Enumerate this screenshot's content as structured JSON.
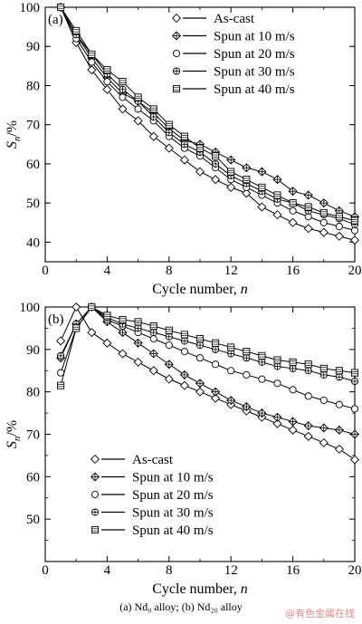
{
  "caption": "(a) Nd₀ alloy; (b) Nd₂₀ alloy",
  "watermark": "@有色金属在线",
  "chart_data": [
    {
      "type": "line",
      "panel_label": "(a)",
      "xlabel": "Cycle number, n",
      "ylabel": "Sn/%",
      "xlim": [
        0,
        20
      ],
      "ylim": [
        35,
        100
      ],
      "xticks": [
        0,
        4,
        8,
        12,
        16,
        20
      ],
      "yticks": [
        40,
        50,
        60,
        70,
        80,
        90,
        100
      ],
      "legend_position": "top-right",
      "x": [
        1,
        2,
        3,
        4,
        5,
        6,
        7,
        8,
        9,
        10,
        11,
        12,
        13,
        14,
        15,
        16,
        17,
        18,
        19,
        20
      ],
      "series": [
        {
          "name": "As-cast",
          "marker": "diamond",
          "values": [
            100,
            91,
            84,
            79,
            74,
            71,
            67,
            64,
            61,
            58,
            56,
            54,
            52.5,
            49,
            47,
            45,
            43.5,
            42.5,
            41.5,
            40.5
          ]
        },
        {
          "name": "Spun at 10 m/s",
          "marker": "plus",
          "values": [
            100,
            93,
            87,
            82,
            78,
            76,
            73,
            69,
            66,
            65,
            63,
            61,
            59,
            58,
            56,
            53,
            52,
            50,
            48,
            46.5
          ]
        },
        {
          "name": "Spun at 20 m/s",
          "marker": "circle",
          "values": [
            100,
            92,
            86,
            81,
            77,
            74,
            71,
            67,
            64,
            62,
            59,
            56,
            54,
            52,
            50,
            48,
            46.5,
            45,
            44,
            43
          ]
        },
        {
          "name": "Spun at 30 m/s",
          "marker": "crossed-circle",
          "values": [
            100,
            93,
            88,
            83,
            79,
            76,
            72,
            68,
            65,
            63,
            60,
            57,
            55,
            53,
            51,
            50,
            48,
            47,
            46,
            44.5
          ]
        },
        {
          "name": "Spun at 40 m/s",
          "marker": "square",
          "values": [
            100,
            94,
            88,
            84,
            81,
            77,
            74,
            70,
            67,
            64,
            62,
            58,
            56,
            54,
            52,
            50,
            49,
            47.5,
            46.5,
            45.5
          ]
        }
      ]
    },
    {
      "type": "line",
      "panel_label": "(b)",
      "xlabel": "Cycle number, n",
      "ylabel": "Sn/%",
      "xlim": [
        0,
        20
      ],
      "ylim": [
        40,
        100
      ],
      "xticks": [
        0,
        4,
        8,
        12,
        16,
        20
      ],
      "yticks": [
        50,
        60,
        70,
        80,
        90,
        100
      ],
      "legend_position": "bottom-left",
      "x": [
        1,
        2,
        3,
        4,
        5,
        6,
        7,
        8,
        9,
        10,
        11,
        12,
        13,
        14,
        15,
        16,
        17,
        18,
        19,
        20
      ],
      "series": [
        {
          "name": "As-cast",
          "marker": "diamond",
          "values": [
            92,
            100,
            94,
            91.5,
            89,
            87,
            85,
            83,
            81.5,
            80,
            78.5,
            77,
            75.5,
            74,
            72.5,
            71,
            69.5,
            68,
            66.5,
            64
          ]
        },
        {
          "name": "Spun at 10 m/s",
          "marker": "plus",
          "values": [
            88,
            96,
            100,
            96.5,
            94,
            91.5,
            89,
            86.5,
            84,
            82,
            80,
            78,
            76.5,
            75,
            74,
            73,
            72,
            71.5,
            71,
            70
          ]
        },
        {
          "name": "Spun at 20 m/s",
          "marker": "circle",
          "values": [
            84.5,
            95,
            100,
            97,
            95.5,
            94,
            92.5,
            91,
            89.5,
            88,
            86.5,
            85,
            84,
            83,
            82,
            80.5,
            79,
            78,
            77,
            76
          ]
        },
        {
          "name": "Spun at 30 m/s",
          "marker": "crossed-circle",
          "values": [
            88.5,
            96,
            100,
            97.5,
            96,
            95,
            94,
            93,
            92,
            91,
            90,
            89,
            88,
            87,
            86,
            85.5,
            85,
            84,
            83.5,
            82.5
          ]
        },
        {
          "name": "Spun at 40 m/s",
          "marker": "square",
          "values": [
            81.5,
            95,
            100,
            98,
            97,
            96.5,
            95.5,
            94.5,
            93.5,
            92.5,
            91.5,
            90.5,
            89.5,
            88.5,
            87.5,
            87,
            86.5,
            85.5,
            85,
            84.5
          ]
        }
      ]
    }
  ]
}
